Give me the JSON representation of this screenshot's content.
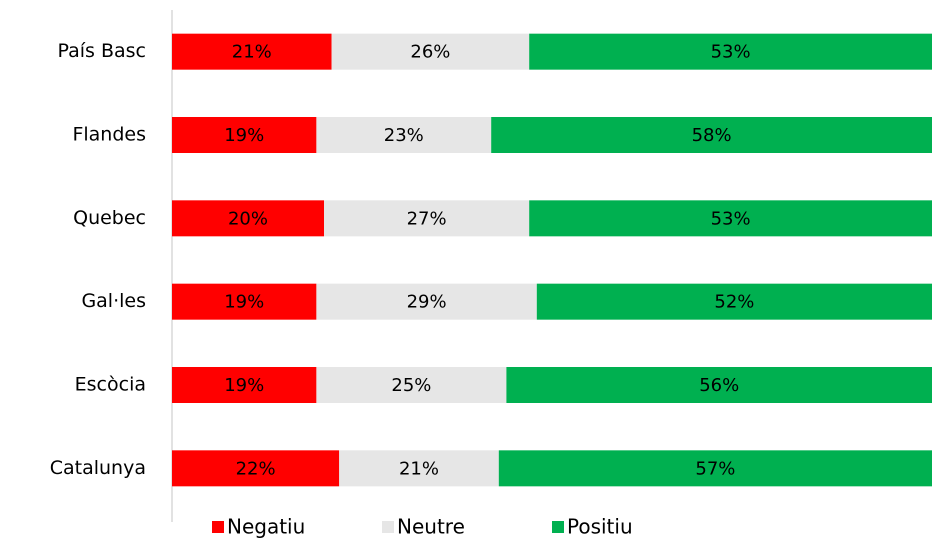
{
  "chart_data": {
    "type": "stacked_bar_horizontal",
    "categories": [
      "País Basc",
      "Flandes",
      "Quebec",
      "Gal·les",
      "Escòcia",
      "Catalunya"
    ],
    "xlim": [
      0,
      100
    ],
    "series": [
      {
        "name": "Negatiu",
        "color": "#ff0000",
        "values": [
          21,
          19,
          20,
          19,
          19,
          22
        ],
        "value_labels": [
          "21%",
          "19%",
          "20%",
          "19%",
          "19%",
          "22%"
        ]
      },
      {
        "name": "Neutre",
        "color": "#e6e6e6",
        "values": [
          26,
          23,
          27,
          29,
          25,
          21
        ],
        "value_labels": [
          "26%",
          "23%",
          "27%",
          "29%",
          "25%",
          "21%"
        ]
      },
      {
        "name": "Positiu",
        "color": "#00b050",
        "values": [
          53,
          58,
          53,
          52,
          56,
          57
        ],
        "value_labels": [
          "53%",
          "58%",
          "53%",
          "52%",
          "56%",
          "57%"
        ]
      }
    ],
    "legend": "bottom"
  }
}
